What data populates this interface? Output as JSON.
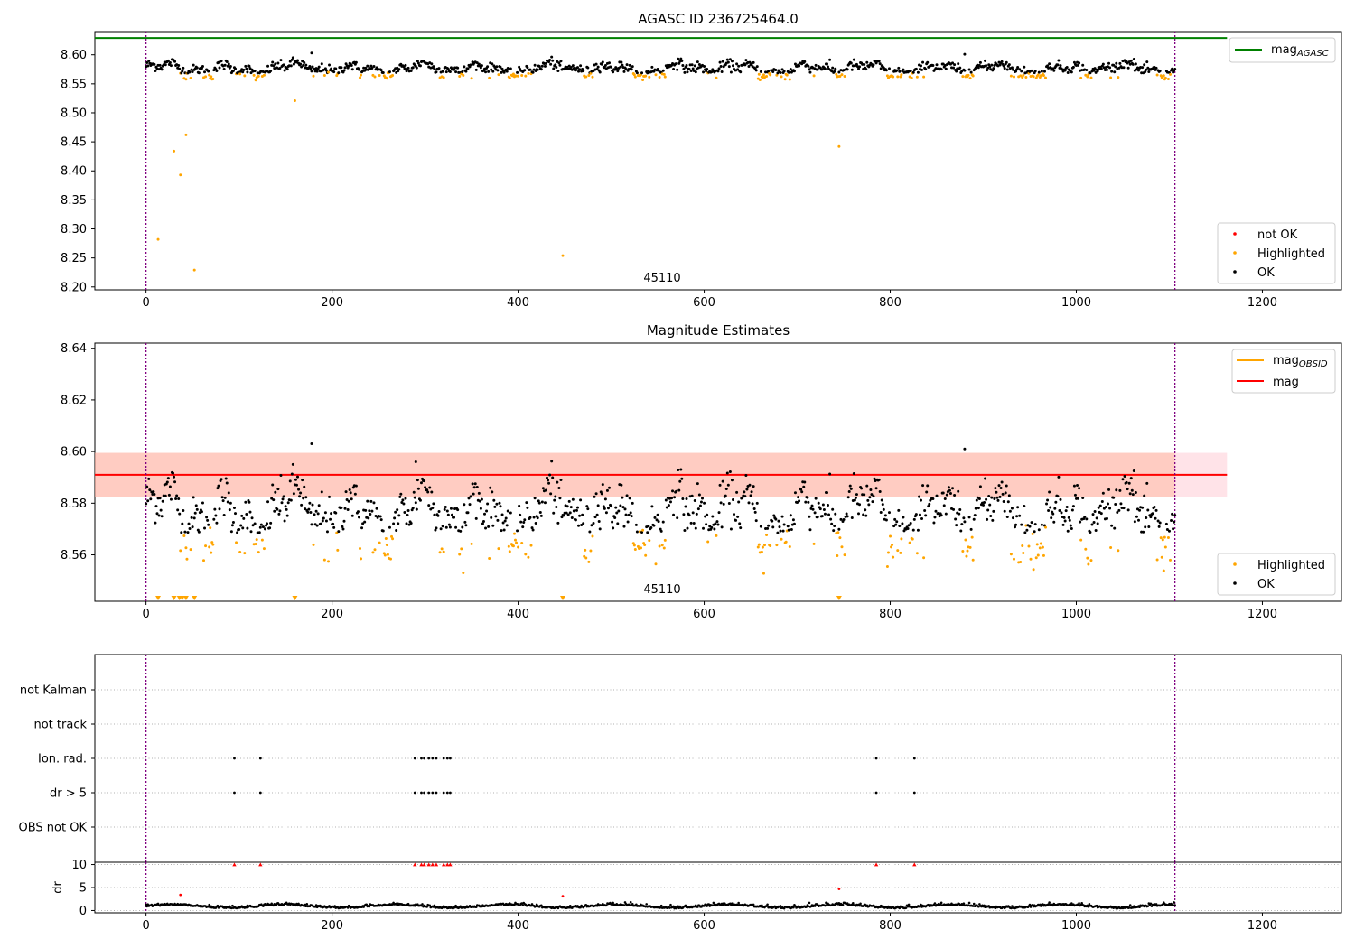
{
  "colors": {
    "ok": "#000000",
    "highlighted": "#ffa500",
    "not_ok": "#ff0000",
    "agasc_line": "#008000",
    "obsid_line": "#ffa500",
    "mag_line": "#ff0000",
    "vline": "#800080",
    "band_fill": "#ffc0cb",
    "band_fill_inner": "#ffa07a"
  },
  "chart_data": [
    {
      "id": "top",
      "type": "scatter",
      "title": "AGASC ID 236725464.0",
      "xlim": [
        -55,
        1285
      ],
      "ylim": [
        8.195,
        8.64
      ],
      "x_ticks": [
        0,
        200,
        400,
        600,
        800,
        1000,
        1200
      ],
      "x_tick_labels": [
        "0",
        "200",
        "400",
        "600",
        "800",
        "1000",
        "1200"
      ],
      "y_ticks": [
        8.2,
        8.25,
        8.3,
        8.35,
        8.4,
        8.45,
        8.5,
        8.55,
        8.6
      ],
      "y_tick_labels": [
        "8.20",
        "8.25",
        "8.30",
        "8.35",
        "8.40",
        "8.45",
        "8.50",
        "8.55",
        "8.60"
      ],
      "annotation": "45110",
      "n_points": 1107,
      "series": [
        {
          "name": "OK",
          "color": "#000000",
          "baseline": 8.576,
          "spread": 0.009
        },
        {
          "name": "Highlighted",
          "color": "#ffa500",
          "baseline": 8.563,
          "spread": 0.004,
          "outliers": [
            [
              13,
              8.282
            ],
            [
              30,
              8.434
            ],
            [
              37,
              8.393
            ],
            [
              43,
              8.462
            ],
            [
              52,
              8.229
            ],
            [
              160,
              8.521
            ],
            [
              448,
              8.254
            ],
            [
              745,
              8.442
            ]
          ]
        },
        {
          "name": "not OK",
          "color": "#ff0000"
        }
      ],
      "hline": {
        "name": "mag_AGASC",
        "y": 8.629,
        "xrange": [
          -55,
          1162
        ],
        "color": "#008000"
      },
      "vlines": [
        0,
        1106
      ],
      "legend_points": [
        "not OK",
        "Highlighted",
        "OK"
      ],
      "legend_lines": [
        "mag_AGASC"
      ]
    },
    {
      "id": "middle",
      "type": "scatter",
      "title": "Magnitude Estimates",
      "xlim": [
        -55,
        1285
      ],
      "ylim": [
        8.542,
        8.642
      ],
      "x_ticks": [
        0,
        200,
        400,
        600,
        800,
        1000,
        1200
      ],
      "x_tick_labels": [
        "0",
        "200",
        "400",
        "600",
        "800",
        "1000",
        "1200"
      ],
      "y_ticks": [
        8.56,
        8.58,
        8.6,
        8.62,
        8.64
      ],
      "y_tick_labels": [
        "8.56",
        "8.58",
        "8.60",
        "8.62",
        "8.64"
      ],
      "annotation": "45110",
      "band": {
        "y0": 8.5825,
        "y1": 8.5995,
        "xrange": [
          -55,
          1162
        ]
      },
      "hlines": [
        {
          "name": "mag",
          "y": 8.591,
          "color": "#ff0000"
        }
      ],
      "series": [
        {
          "name": "OK",
          "color": "#000000",
          "baseline": 8.576,
          "spread": 0.009
        },
        {
          "name": "Highlighted",
          "color": "#ffa500",
          "baseline": 8.563,
          "spread": 0.004
        }
      ],
      "clipped_markers_x": [
        13,
        30,
        36,
        39,
        43,
        52,
        160,
        448,
        745
      ],
      "vlines": [
        0,
        1106
      ],
      "legend_points": [
        "Highlighted",
        "OK"
      ],
      "legend_lines": [
        "mag_OBSID",
        "mag"
      ]
    },
    {
      "id": "flags",
      "type": "scatter",
      "xlim": [
        -55,
        1285
      ],
      "categories": [
        "not Kalman",
        "not track",
        "Ion. rad.",
        "dr > 5",
        "OBS not OK"
      ],
      "flag_events": {
        "Ion. rad.": [
          95,
          123,
          289,
          296,
          299,
          304,
          308,
          312,
          320,
          324,
          327,
          785,
          826
        ],
        "dr > 5": [
          95,
          123,
          289,
          296,
          299,
          304,
          308,
          312,
          320,
          324,
          327,
          785,
          826
        ]
      },
      "vlines": [
        0,
        1106
      ]
    },
    {
      "id": "dr",
      "type": "scatter",
      "ylabel": "dr",
      "xlim": [
        -55,
        1285
      ],
      "ylim": [
        -0.5,
        10.5
      ],
      "x_ticks": [
        0,
        200,
        400,
        600,
        800,
        1000,
        1200
      ],
      "x_tick_labels": [
        "0",
        "200",
        "400",
        "600",
        "800",
        "1000",
        "1200"
      ],
      "y_ticks": [
        0,
        5,
        10
      ],
      "y_tick_labels": [
        "0",
        "5",
        "10"
      ],
      "red_capped_x": [
        95,
        123,
        289,
        296,
        299,
        304,
        308,
        312,
        320,
        324,
        327,
        785,
        826
      ],
      "red_points": [
        [
          37,
          3.4
        ],
        [
          448,
          3.1
        ],
        [
          745,
          4.7
        ]
      ],
      "vlines": [
        0,
        1106
      ]
    }
  ]
}
